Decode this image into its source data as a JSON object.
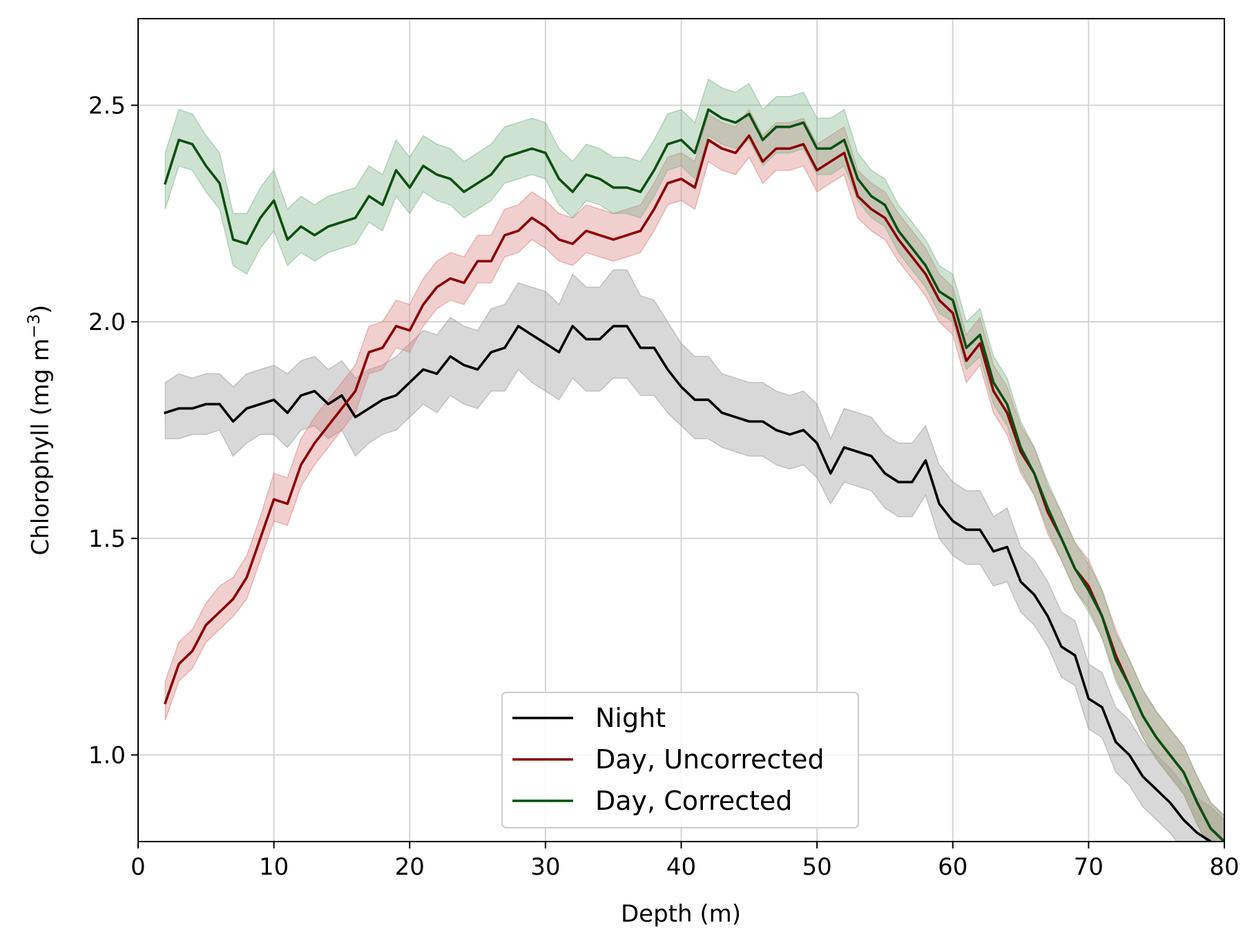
{
  "chart_data": {
    "type": "line",
    "xlabel": "Depth (m)",
    "ylabel": {
      "prefix": "Chlorophyll (mg m",
      "sup1": "−3",
      "suffix": ")"
    },
    "xlim": [
      0,
      80
    ],
    "ylim": [
      0.8,
      2.7
    ],
    "x_ticks": [
      0,
      10,
      20,
      30,
      40,
      50,
      60,
      70,
      80
    ],
    "y_ticks": [
      1.0,
      1.5,
      2.0,
      2.5
    ],
    "x_tick_labels": [
      "0",
      "10",
      "20",
      "30",
      "40",
      "50",
      "60",
      "70",
      "80"
    ],
    "y_tick_labels": [
      "1.0",
      "1.5",
      "2.0",
      "2.5"
    ],
    "grid": true,
    "legend_position": "bottom-center",
    "x": [
      2,
      3,
      4,
      5,
      6,
      7,
      8,
      9,
      10,
      11,
      12,
      13,
      14,
      15,
      16,
      17,
      18,
      19,
      20,
      21,
      22,
      23,
      24,
      25,
      26,
      27,
      28,
      29,
      30,
      31,
      32,
      33,
      34,
      35,
      36,
      37,
      38,
      39,
      40,
      41,
      42,
      43,
      44,
      45,
      46,
      47,
      48,
      49,
      50,
      51,
      52,
      53,
      54,
      55,
      56,
      57,
      58,
      59,
      60,
      61,
      62,
      63,
      64,
      65,
      66,
      67,
      68,
      69,
      70,
      71,
      72,
      73,
      74,
      75,
      76,
      77,
      78,
      79,
      80
    ],
    "series": [
      {
        "name": "Night",
        "color": "#000000",
        "band_color": "#999999",
        "y": [
          1.79,
          1.8,
          1.8,
          1.81,
          1.81,
          1.77,
          1.8,
          1.81,
          1.82,
          1.79,
          1.83,
          1.84,
          1.81,
          1.83,
          1.78,
          1.8,
          1.82,
          1.83,
          1.86,
          1.89,
          1.88,
          1.92,
          1.9,
          1.89,
          1.93,
          1.94,
          1.99,
          1.97,
          1.95,
          1.93,
          1.99,
          1.96,
          1.96,
          1.99,
          1.99,
          1.94,
          1.94,
          1.89,
          1.85,
          1.82,
          1.82,
          1.79,
          1.78,
          1.77,
          1.77,
          1.75,
          1.74,
          1.75,
          1.72,
          1.65,
          1.71,
          1.7,
          1.69,
          1.65,
          1.63,
          1.63,
          1.68,
          1.58,
          1.54,
          1.52,
          1.52,
          1.47,
          1.48,
          1.4,
          1.37,
          1.32,
          1.25,
          1.23,
          1.13,
          1.11,
          1.03,
          1.0,
          0.95,
          0.92,
          0.89,
          0.85,
          0.82,
          0.8,
          0.77
        ],
        "lower": [
          1.73,
          1.73,
          1.74,
          1.74,
          1.75,
          1.69,
          1.72,
          1.74,
          1.74,
          1.71,
          1.75,
          1.76,
          1.73,
          1.75,
          1.69,
          1.72,
          1.74,
          1.75,
          1.78,
          1.81,
          1.79,
          1.83,
          1.81,
          1.8,
          1.84,
          1.84,
          1.89,
          1.86,
          1.84,
          1.82,
          1.87,
          1.84,
          1.84,
          1.87,
          1.87,
          1.83,
          1.83,
          1.79,
          1.76,
          1.73,
          1.73,
          1.71,
          1.7,
          1.69,
          1.69,
          1.67,
          1.66,
          1.67,
          1.64,
          1.58,
          1.63,
          1.62,
          1.61,
          1.57,
          1.55,
          1.55,
          1.6,
          1.5,
          1.46,
          1.44,
          1.44,
          1.39,
          1.4,
          1.33,
          1.3,
          1.25,
          1.18,
          1.16,
          1.06,
          1.04,
          0.96,
          0.93,
          0.88,
          0.85,
          0.82,
          0.78,
          0.75,
          0.73,
          0.7
        ],
        "upper": [
          1.86,
          1.88,
          1.87,
          1.88,
          1.88,
          1.85,
          1.88,
          1.89,
          1.9,
          1.88,
          1.91,
          1.92,
          1.89,
          1.91,
          1.87,
          1.89,
          1.9,
          1.92,
          1.95,
          1.98,
          1.97,
          2.01,
          1.99,
          1.98,
          2.03,
          2.04,
          2.09,
          2.08,
          2.07,
          2.04,
          2.11,
          2.08,
          2.08,
          2.12,
          2.12,
          2.06,
          2.05,
          2.0,
          1.95,
          1.92,
          1.92,
          1.88,
          1.87,
          1.86,
          1.86,
          1.84,
          1.83,
          1.84,
          1.81,
          1.73,
          1.8,
          1.79,
          1.78,
          1.74,
          1.72,
          1.72,
          1.76,
          1.67,
          1.63,
          1.61,
          1.61,
          1.55,
          1.57,
          1.48,
          1.45,
          1.4,
          1.33,
          1.31,
          1.21,
          1.19,
          1.11,
          1.08,
          1.03,
          1.0,
          0.97,
          0.93,
          0.9,
          0.88,
          0.85
        ]
      },
      {
        "name": "Day, Uncorrected",
        "color": "#8b0000",
        "band_color": "#d98080",
        "y": [
          1.12,
          1.21,
          1.24,
          1.3,
          1.33,
          1.36,
          1.41,
          1.5,
          1.59,
          1.58,
          1.67,
          1.72,
          1.76,
          1.8,
          1.84,
          1.93,
          1.94,
          1.99,
          1.98,
          2.04,
          2.08,
          2.1,
          2.09,
          2.14,
          2.14,
          2.2,
          2.21,
          2.24,
          2.22,
          2.19,
          2.18,
          2.21,
          2.2,
          2.19,
          2.2,
          2.21,
          2.26,
          2.32,
          2.33,
          2.31,
          2.42,
          2.4,
          2.39,
          2.43,
          2.37,
          2.4,
          2.4,
          2.41,
          2.35,
          2.37,
          2.39,
          2.29,
          2.26,
          2.24,
          2.19,
          2.15,
          2.11,
          2.05,
          2.02,
          1.91,
          1.95,
          1.84,
          1.79,
          1.7,
          1.65,
          1.56,
          1.5,
          1.43,
          1.39,
          1.32,
          1.23,
          1.16,
          1.09,
          1.04,
          1.0,
          0.96,
          0.89,
          0.83,
          0.8
        ],
        "lower": [
          1.08,
          1.17,
          1.2,
          1.26,
          1.29,
          1.32,
          1.36,
          1.45,
          1.54,
          1.53,
          1.62,
          1.67,
          1.71,
          1.75,
          1.79,
          1.88,
          1.89,
          1.94,
          1.93,
          1.99,
          2.03,
          2.05,
          2.04,
          2.09,
          2.09,
          2.15,
          2.16,
          2.19,
          2.17,
          2.14,
          2.13,
          2.16,
          2.15,
          2.14,
          2.15,
          2.16,
          2.21,
          2.27,
          2.28,
          2.26,
          2.37,
          2.35,
          2.34,
          2.38,
          2.32,
          2.35,
          2.35,
          2.36,
          2.3,
          2.32,
          2.34,
          2.24,
          2.21,
          2.19,
          2.14,
          2.1,
          2.06,
          2.0,
          1.97,
          1.86,
          1.9,
          1.79,
          1.74,
          1.65,
          1.6,
          1.51,
          1.45,
          1.38,
          1.34,
          1.27,
          1.18,
          1.11,
          1.04,
          0.99,
          0.95,
          0.91,
          0.84,
          0.78,
          0.75
        ],
        "upper": [
          1.17,
          1.26,
          1.29,
          1.35,
          1.39,
          1.41,
          1.46,
          1.55,
          1.65,
          1.64,
          1.73,
          1.78,
          1.82,
          1.86,
          1.9,
          1.99,
          2.0,
          2.05,
          2.04,
          2.1,
          2.14,
          2.16,
          2.15,
          2.2,
          2.2,
          2.26,
          2.27,
          2.3,
          2.28,
          2.25,
          2.24,
          2.27,
          2.26,
          2.25,
          2.26,
          2.27,
          2.32,
          2.38,
          2.39,
          2.37,
          2.48,
          2.46,
          2.45,
          2.49,
          2.43,
          2.46,
          2.46,
          2.47,
          2.41,
          2.43,
          2.45,
          2.35,
          2.32,
          2.3,
          2.25,
          2.21,
          2.17,
          2.11,
          2.08,
          1.97,
          2.01,
          1.9,
          1.85,
          1.76,
          1.71,
          1.62,
          1.56,
          1.49,
          1.45,
          1.38,
          1.29,
          1.22,
          1.15,
          1.1,
          1.06,
          1.02,
          0.95,
          0.89,
          0.86
        ]
      },
      {
        "name": "Day, Corrected",
        "color": "#0b5010",
        "band_color": "#7fb38a",
        "y": [
          2.32,
          2.42,
          2.41,
          2.36,
          2.32,
          2.19,
          2.18,
          2.24,
          2.28,
          2.19,
          2.22,
          2.2,
          2.22,
          2.23,
          2.24,
          2.29,
          2.27,
          2.35,
          2.31,
          2.36,
          2.34,
          2.33,
          2.3,
          2.32,
          2.34,
          2.38,
          2.39,
          2.4,
          2.39,
          2.33,
          2.3,
          2.34,
          2.33,
          2.31,
          2.31,
          2.3,
          2.35,
          2.41,
          2.42,
          2.39,
          2.49,
          2.47,
          2.46,
          2.48,
          2.42,
          2.45,
          2.45,
          2.46,
          2.4,
          2.4,
          2.42,
          2.33,
          2.29,
          2.27,
          2.21,
          2.17,
          2.13,
          2.07,
          2.05,
          1.94,
          1.97,
          1.86,
          1.81,
          1.71,
          1.65,
          1.57,
          1.5,
          1.43,
          1.38,
          1.32,
          1.22,
          1.16,
          1.09,
          1.04,
          1.0,
          0.96,
          0.89,
          0.83,
          0.8
        ],
        "lower": [
          2.26,
          2.36,
          2.35,
          2.3,
          2.26,
          2.13,
          2.11,
          2.17,
          2.21,
          2.13,
          2.16,
          2.14,
          2.16,
          2.17,
          2.18,
          2.23,
          2.21,
          2.29,
          2.25,
          2.3,
          2.28,
          2.27,
          2.24,
          2.26,
          2.28,
          2.32,
          2.33,
          2.34,
          2.33,
          2.27,
          2.24,
          2.28,
          2.27,
          2.25,
          2.25,
          2.24,
          2.29,
          2.35,
          2.36,
          2.33,
          2.43,
          2.41,
          2.4,
          2.42,
          2.36,
          2.39,
          2.39,
          2.4,
          2.34,
          2.34,
          2.36,
          2.28,
          2.24,
          2.22,
          2.16,
          2.12,
          2.08,
          2.02,
          2.0,
          1.89,
          1.92,
          1.81,
          1.76,
          1.66,
          1.6,
          1.52,
          1.45,
          1.38,
          1.33,
          1.27,
          1.17,
          1.11,
          1.04,
          0.99,
          0.95,
          0.91,
          0.84,
          0.78,
          0.75
        ],
        "upper": [
          2.39,
          2.49,
          2.48,
          2.43,
          2.39,
          2.25,
          2.25,
          2.31,
          2.35,
          2.26,
          2.29,
          2.27,
          2.29,
          2.3,
          2.31,
          2.36,
          2.34,
          2.42,
          2.38,
          2.43,
          2.41,
          2.4,
          2.37,
          2.39,
          2.41,
          2.45,
          2.46,
          2.47,
          2.46,
          2.4,
          2.37,
          2.41,
          2.4,
          2.38,
          2.38,
          2.37,
          2.42,
          2.48,
          2.49,
          2.46,
          2.56,
          2.54,
          2.53,
          2.55,
          2.49,
          2.52,
          2.52,
          2.53,
          2.47,
          2.47,
          2.49,
          2.39,
          2.35,
          2.33,
          2.27,
          2.23,
          2.19,
          2.13,
          2.11,
          2.0,
          2.03,
          1.92,
          1.87,
          1.77,
          1.71,
          1.63,
          1.56,
          1.49,
          1.44,
          1.38,
          1.28,
          1.22,
          1.15,
          1.1,
          1.06,
          1.02,
          0.95,
          0.89,
          0.86
        ]
      }
    ]
  }
}
